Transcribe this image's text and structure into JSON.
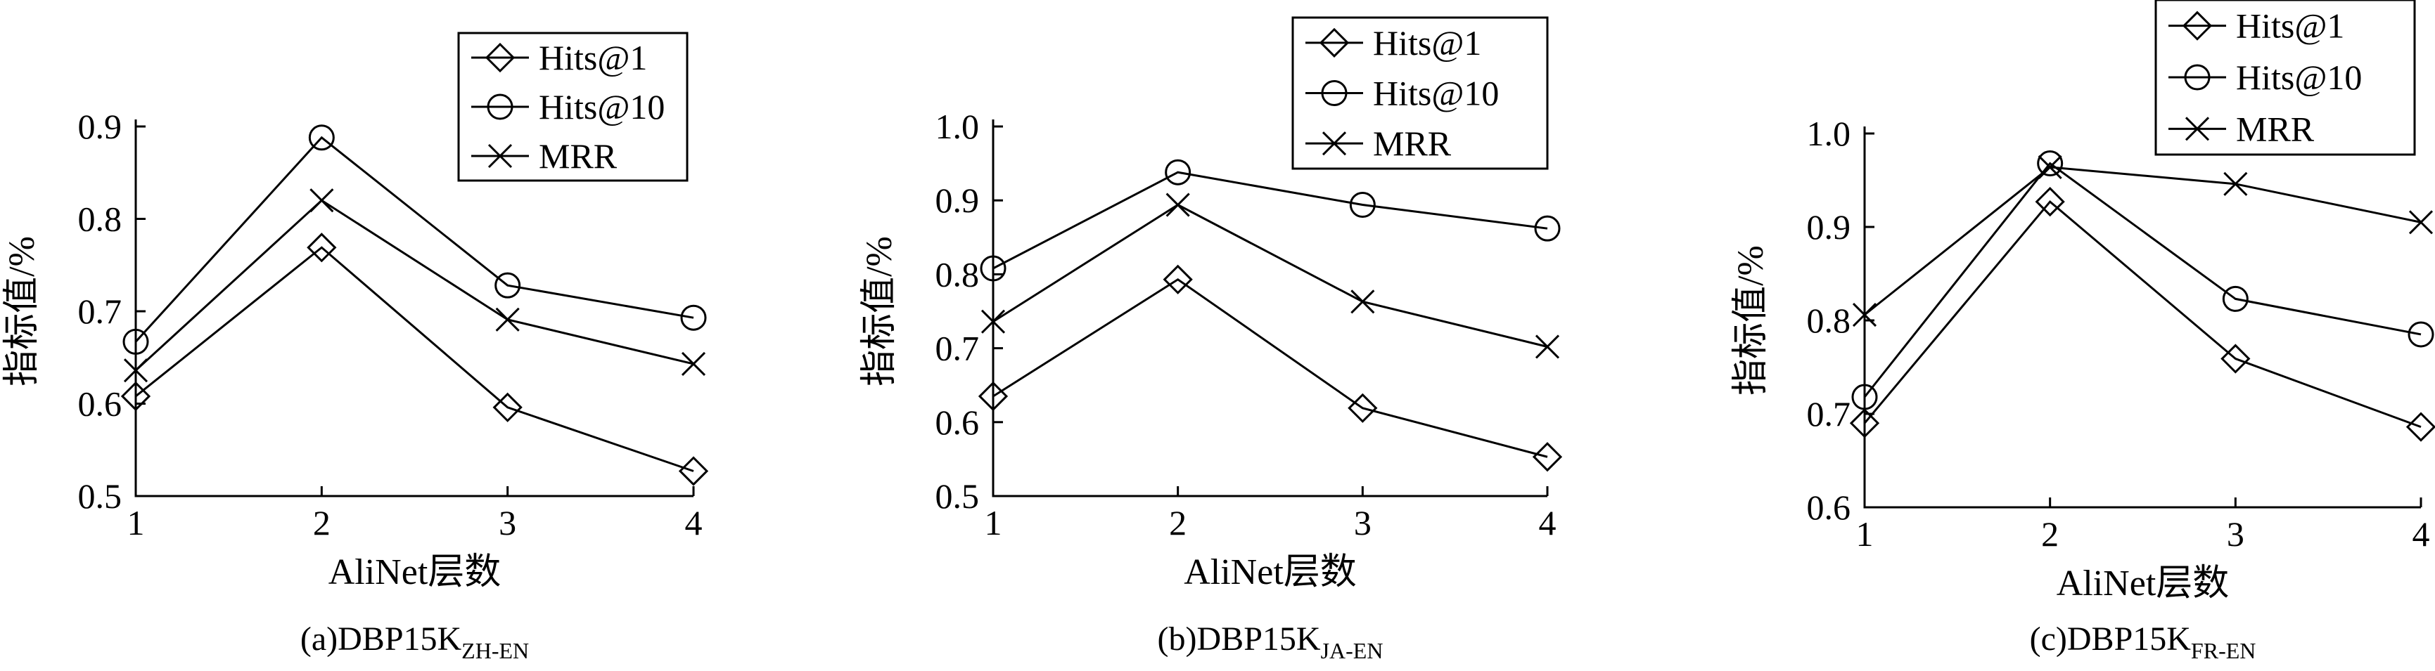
{
  "chart_data": [
    {
      "type": "line",
      "caption_main": "(a)DBP15K",
      "caption_sub": "ZH-EN",
      "xlabel": "AliNet层数",
      "ylabel": "指标值/%",
      "x": [
        1,
        2,
        3,
        4
      ],
      "xticks": [
        "1",
        "2",
        "3",
        "4"
      ],
      "ylim": [
        0.5,
        0.9
      ],
      "yticks": [
        "0.5",
        "0.6",
        "0.7",
        "0.8",
        "0.9"
      ],
      "legend": "top-right",
      "series": [
        {
          "name": "Hits@1",
          "marker": "diamond",
          "values": [
            0.608,
            0.769,
            0.596,
            0.527
          ]
        },
        {
          "name": "Hits@10",
          "marker": "circle",
          "values": [
            0.667,
            0.888,
            0.728,
            0.693
          ]
        },
        {
          "name": "MRR",
          "marker": "cross",
          "values": [
            0.636,
            0.82,
            0.691,
            0.643
          ]
        }
      ]
    },
    {
      "type": "line",
      "caption_main": "(b)DBP15K",
      "caption_sub": "JA-EN",
      "xlabel": "AliNet层数",
      "ylabel": "指标值/%",
      "x": [
        1,
        2,
        3,
        4
      ],
      "xticks": [
        "1",
        "2",
        "3",
        "4"
      ],
      "ylim": [
        0.5,
        1.0
      ],
      "yticks": [
        "0.5",
        "0.6",
        "0.7",
        "0.8",
        "0.9",
        "1.0"
      ],
      "legend": "top-right",
      "series": [
        {
          "name": "Hits@1",
          "marker": "diamond",
          "values": [
            0.635,
            0.793,
            0.619,
            0.553
          ]
        },
        {
          "name": "Hits@10",
          "marker": "circle",
          "values": [
            0.808,
            0.938,
            0.894,
            0.862
          ]
        },
        {
          "name": "MRR",
          "marker": "cross",
          "values": [
            0.736,
            0.894,
            0.763,
            0.702
          ]
        }
      ]
    },
    {
      "type": "line",
      "caption_main": "(c)DBP15K",
      "caption_sub": "FR-EN",
      "xlabel": "AliNet层数",
      "ylabel": "指标值/%",
      "x": [
        1,
        2,
        3,
        4
      ],
      "xticks": [
        "1",
        "2",
        "3",
        "4"
      ],
      "ylim": [
        0.6,
        1.0
      ],
      "yticks": [
        "0.6",
        "0.7",
        "0.8",
        "0.9",
        "1.0"
      ],
      "legend": "top-right",
      "series": [
        {
          "name": "Hits@1",
          "marker": "diamond",
          "values": [
            0.69,
            0.927,
            0.759,
            0.686
          ]
        },
        {
          "name": "Hits@10",
          "marker": "circle",
          "values": [
            0.718,
            0.968,
            0.823,
            0.785
          ]
        },
        {
          "name": "MRR",
          "marker": "cross",
          "values": [
            0.806,
            0.964,
            0.946,
            0.905
          ]
        }
      ]
    }
  ]
}
